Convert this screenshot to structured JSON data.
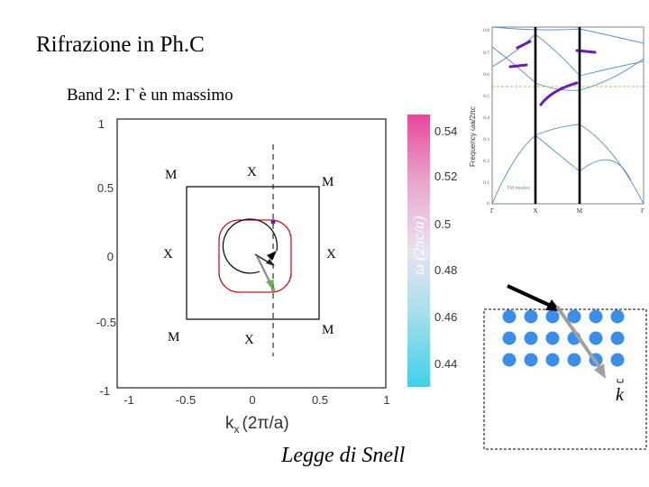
{
  "slide": {
    "title": "Rifrazione in Ph.C",
    "subtitle": "Band 2: Γ è un massimo",
    "footer": "Legge di Snell"
  },
  "contour_plot": {
    "x_ticks": [
      "-0.5",
      "0",
      "0.5",
      "1"
    ],
    "x_outer_tick": "-1",
    "y_ticks": [
      "1",
      "0.5",
      "0",
      "-0.5",
      "-1"
    ],
    "xlabel_main": "k",
    "xlabel_sub": "x",
    "xlabel_rest": "(2π/a)",
    "bz_labels": {
      "top_left": "M",
      "top_mid": "X",
      "top_right": "M",
      "mid_left": "X",
      "mid_right": "X",
      "bottom_left": "M",
      "bottom_mid": "X",
      "bottom_right": "M"
    }
  },
  "colorbar": {
    "label": "ω (2πc/a)",
    "ticks": [
      "0.54",
      "0.52",
      "0.5",
      "0.48",
      "0.46",
      "0.44"
    ],
    "color_top": "#e8479a",
    "color_bottom": "#3fd0e8"
  },
  "band_diagram": {
    "ylabel": "Frequency ωa/2πc",
    "y_ticks": [
      "0.8",
      "0.7",
      "0.6",
      "0.5",
      "0.4",
      "0.3",
      "0.2",
      "0.1",
      "0"
    ],
    "x_ticks": [
      "Γ",
      "X",
      "M",
      "Γ"
    ],
    "legend": "TM modes",
    "band_color": "#5b8fc9",
    "highlight_color": "#6a1fb0",
    "guide_color": "#8bd36a"
  },
  "crystal": {
    "rows": 3,
    "cols": 6,
    "dot_color": "#3b8fe8",
    "k_label": "k"
  }
}
